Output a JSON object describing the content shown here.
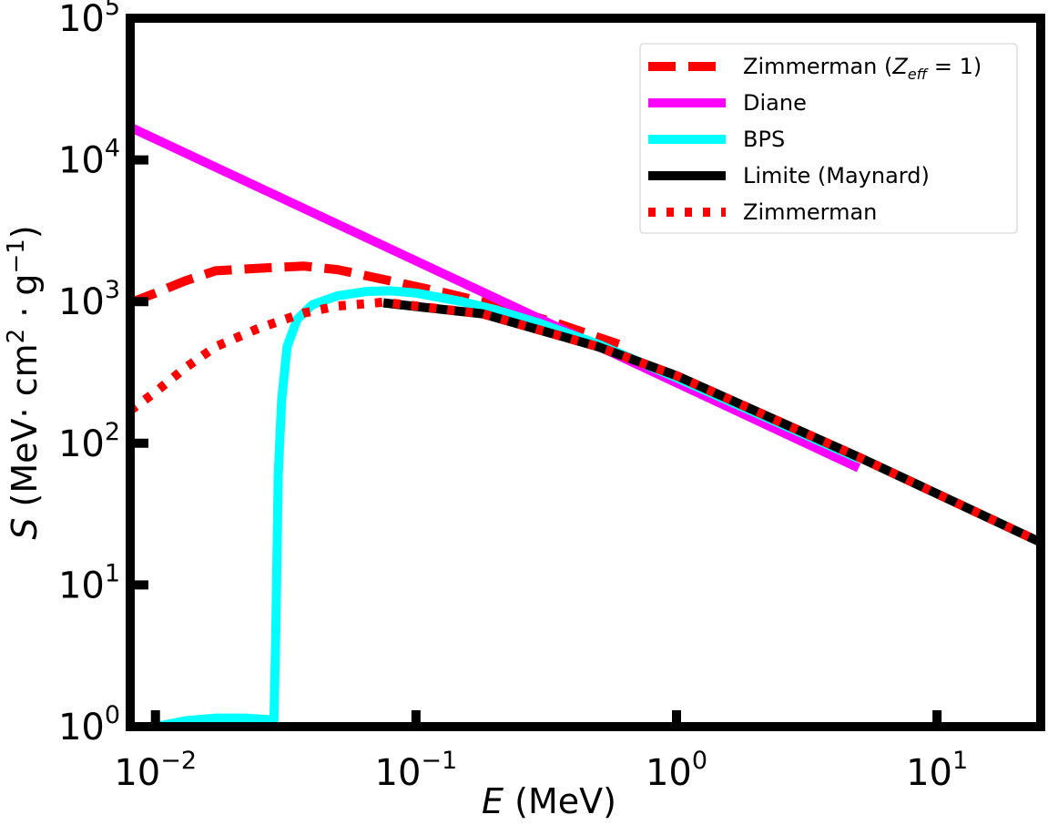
{
  "chart_data": {
    "type": "line",
    "title": "",
    "xscale": "log",
    "yscale": "log",
    "xlim": [
      0.008,
      25
    ],
    "ylim": [
      1,
      100000
    ],
    "xlabel": {
      "var": "E",
      "unit": " (MeV)"
    },
    "ylabel": {
      "var": "S",
      "unit_a": " (MeV· cm",
      "unit_a_exp": "2",
      "unit_b": " · g",
      "unit_b_exp": "−1",
      "unit_c": ")"
    },
    "x_ticks": [
      {
        "value": 0.01,
        "base": "10",
        "exp": "−2"
      },
      {
        "value": 0.1,
        "base": "10",
        "exp": "−1"
      },
      {
        "value": 1,
        "base": "10",
        "exp": "0"
      },
      {
        "value": 10,
        "base": "10",
        "exp": "1"
      }
    ],
    "y_ticks": [
      {
        "value": 1,
        "base": "10",
        "exp": "0"
      },
      {
        "value": 10,
        "base": "10",
        "exp": "1"
      },
      {
        "value": 100,
        "base": "10",
        "exp": "2"
      },
      {
        "value": 1000,
        "base": "10",
        "exp": "3"
      },
      {
        "value": 10000,
        "base": "10",
        "exp": "4"
      },
      {
        "value": 100000,
        "base": "10",
        "exp": "5"
      }
    ],
    "legend_position": "top-right",
    "series": [
      {
        "name": "Zimmerman (Z_eff = 1)",
        "label_main": "Zimmerman (",
        "label_var": "Z",
        "label_sub": "eff",
        "label_end": " = 1)",
        "color": "#ff0000",
        "style": "dashed",
        "x": [
          0.008,
          0.01,
          0.013,
          0.017,
          0.025,
          0.037,
          0.05,
          0.08,
          0.13,
          0.2,
          0.35,
          0.6
        ],
        "y": [
          980,
          1150,
          1400,
          1650,
          1720,
          1780,
          1680,
          1400,
          1150,
          950,
          700,
          500
        ]
      },
      {
        "name": "Diane",
        "label_main": "Diane",
        "color": "#ff00ff",
        "style": "solid",
        "x": [
          0.008,
          5
        ],
        "y": [
          17000,
          67
        ]
      },
      {
        "name": "BPS",
        "label_main": "BPS",
        "color": "#00ffff",
        "style": "solid",
        "x": [
          0.01,
          0.013,
          0.017,
          0.022,
          0.027,
          0.0285,
          0.029,
          0.0296,
          0.0305,
          0.032,
          0.035,
          0.04,
          0.05,
          0.065,
          0.08,
          0.1,
          0.15,
          0.2,
          0.3,
          0.5,
          1,
          2,
          5
        ],
        "y": [
          1,
          1.1,
          1.15,
          1.15,
          1.12,
          1.12,
          5,
          60,
          200,
          480,
          750,
          950,
          1100,
          1180,
          1190,
          1150,
          1000,
          880,
          700,
          500,
          290,
          165,
          78
        ]
      },
      {
        "name": "Limite (Maynard)",
        "label_main": "Limite (Maynard)",
        "color": "#000000",
        "style": "solid",
        "x": [
          0.075,
          0.18,
          0.5,
          1,
          5,
          25
        ],
        "y": [
          980,
          820,
          480,
          300,
          80,
          20
        ]
      },
      {
        "name": "Zimmerman",
        "label_main": "Zimmerman",
        "color": "#ff0000",
        "style": "dotted",
        "x": [
          0.008,
          0.01,
          0.013,
          0.017,
          0.025,
          0.037,
          0.05,
          0.075,
          0.18,
          0.5,
          1,
          5,
          25
        ],
        "y": [
          170,
          230,
          340,
          480,
          650,
          830,
          930,
          990,
          820,
          480,
          300,
          80,
          20
        ]
      }
    ]
  }
}
